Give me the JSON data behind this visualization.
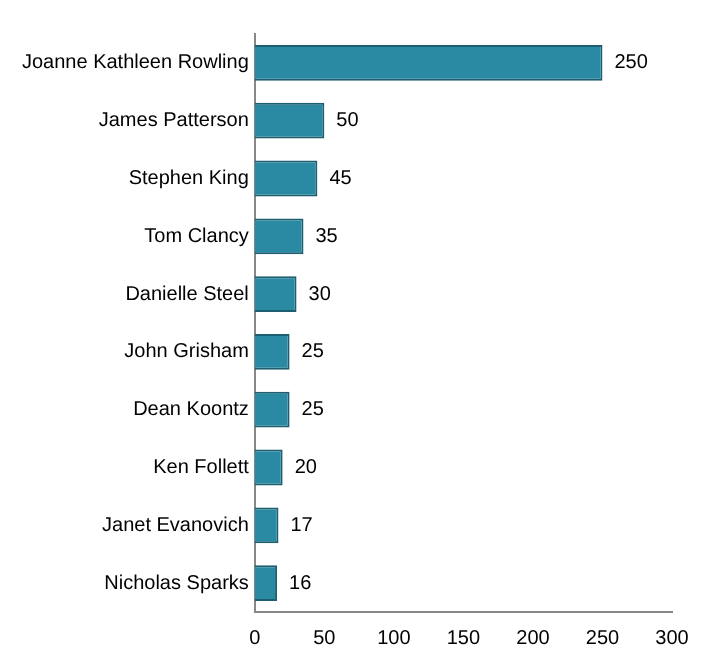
{
  "chart_data": {
    "type": "bar",
    "orientation": "horizontal",
    "categories": [
      "Joanne Kathleen Rowling",
      "James Patterson",
      "Stephen King",
      "Tom Clancy",
      "Danielle Steel",
      "John Grisham",
      "Dean Koontz",
      "Ken Follett",
      "Janet Evanovich",
      "Nicholas Sparks"
    ],
    "values": [
      250,
      50,
      45,
      35,
      30,
      25,
      25,
      20,
      17,
      16
    ],
    "color": "#2b8aa3",
    "xlim": [
      0,
      300
    ],
    "xticks": [
      0,
      50,
      100,
      150,
      200,
      250,
      300
    ],
    "grid": false,
    "legend": false,
    "data_labels": true
  }
}
